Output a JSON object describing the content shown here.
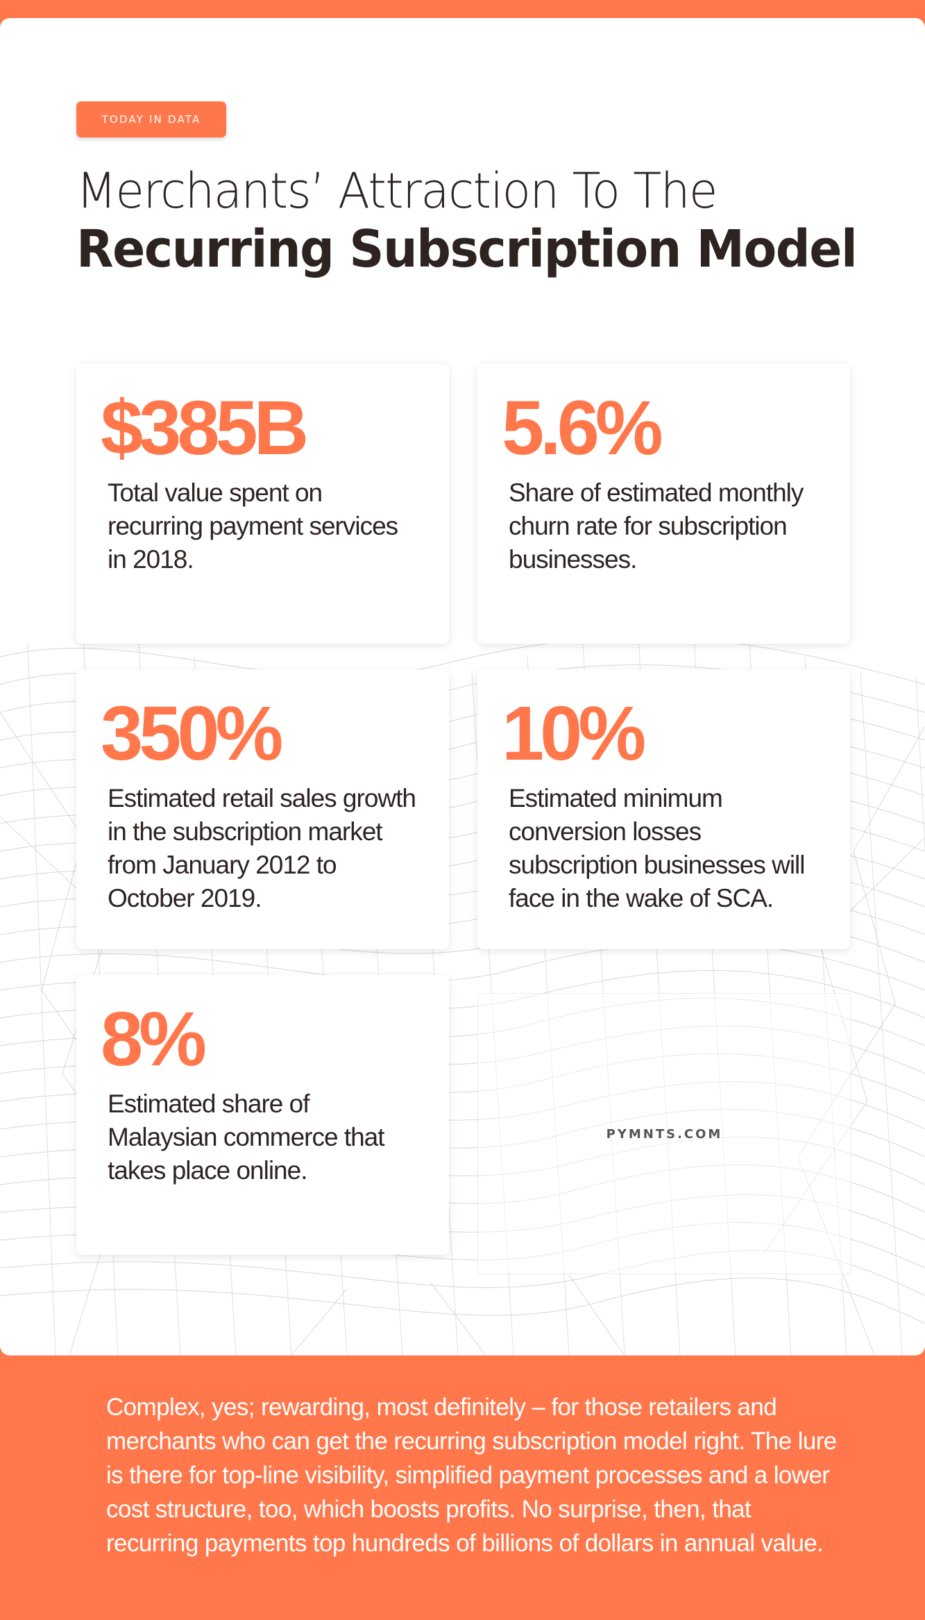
{
  "header": {
    "tag": "TODAY IN DATA",
    "title_line1": "Merchants’ Attraction To The",
    "title_line2": "Recurring Subscription Model"
  },
  "stats": [
    {
      "value": "$385B",
      "description": "Total value spent on recurring payment services in 2018."
    },
    {
      "value": "5.6%",
      "description": "Share of estimated monthly churn rate for subscription businesses."
    },
    {
      "value": "350%",
      "description": "Estimated retail sales growth in the subscription market from January 2012 to October 2019."
    },
    {
      "value": "10%",
      "description": "Estimated minimum conversion losses subscription businesses will face in the wake of SCA."
    },
    {
      "value": "8%",
      "description": "Estimated share of Malaysian commerce that takes place online."
    }
  ],
  "brand": "PYMNTS.COM",
  "footer": {
    "text": "Complex, yes; rewarding, most definitely – for those retailers and merchants who can get the recurring subscription model right. The lure is there for top-line visibility, simplified payment processes and a lower cost structure, too, which boosts profits. No surprise, then, that recurring payments top hundreds of billions of dollars in annual value."
  },
  "colors": {
    "accent": "#ff774a",
    "text": "#2d2422",
    "background": "#ffffff"
  }
}
